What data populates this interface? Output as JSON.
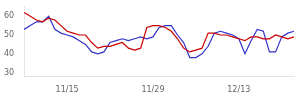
{
  "chart_data": {
    "type": "line",
    "categories": [
      null,
      null,
      null,
      null,
      null,
      null,
      null,
      "11/15",
      null,
      null,
      null,
      null,
      null,
      null,
      null,
      null,
      null,
      null,
      null,
      null,
      null,
      "11/29",
      null,
      null,
      null,
      null,
      null,
      null,
      null,
      null,
      null,
      null,
      null,
      null,
      null,
      "12/13",
      null,
      null,
      null,
      null,
      null,
      null,
      null,
      null,
      null
    ],
    "series": [
      {
        "color": "#cc0000",
        "values": [
          62,
          60,
          58,
          57,
          59,
          58,
          55,
          52,
          51,
          50,
          50,
          46,
          43,
          44,
          44,
          45,
          46,
          43,
          42,
          43,
          54,
          55,
          55,
          54,
          52,
          48,
          43,
          41,
          42,
          43,
          51,
          51,
          50,
          50,
          49,
          48,
          47,
          49,
          49,
          48,
          48,
          50,
          49,
          48,
          49
        ]
      },
      {
        "color": "#3333cc",
        "values": [
          53,
          55,
          57,
          57,
          60,
          53,
          51,
          50,
          49,
          47,
          45,
          41,
          40,
          41,
          46,
          47,
          48,
          47,
          48,
          49,
          48,
          49,
          54,
          55,
          55,
          50,
          46,
          38,
          38,
          40,
          44,
          51,
          52,
          51,
          50,
          48,
          40,
          47,
          53,
          52,
          41,
          41,
          49,
          51,
          52
        ]
      }
    ],
    "ylim": [
      28,
      65
    ],
    "yticks": [
      30,
      40,
      50,
      60
    ],
    "grid": false
  }
}
